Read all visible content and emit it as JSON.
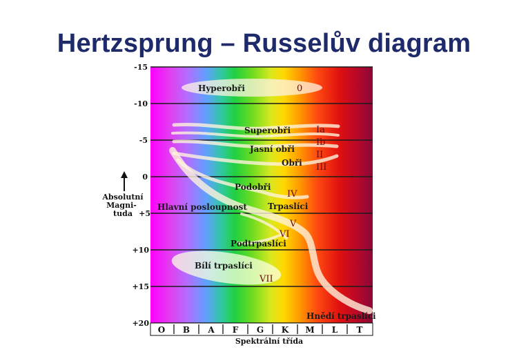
{
  "title": "Hertzsprung – Russelův diagram",
  "y_axis": {
    "label_lines": [
      "Absolutní",
      "Magni-",
      "tuda"
    ],
    "ticks": [
      "-15",
      "-10",
      "-5",
      "0",
      "+5",
      "+10",
      "+15",
      "+20"
    ]
  },
  "x_axis": {
    "label": "Spektrální třída",
    "classes": [
      "O",
      "B",
      "A",
      "F",
      "G",
      "K",
      "M",
      "L",
      "T"
    ]
  },
  "regions": {
    "hyperobri": "Hyperobři",
    "superobri": "Superobři",
    "jasni_obri": "Jasní obři",
    "obri": "Obři",
    "podobri": "Podobři",
    "hlavni_posloupnost": "Hlavní posloupnost",
    "trpaslici": "Trpaslíci",
    "podtrpaslici": "Podtrpaslíci",
    "bili_trpaslici": "Bílí trpaslíci",
    "hnedi_trpaslici": "Hnědí trpaslíci"
  },
  "luminosity_classes": {
    "c0": "0",
    "ia": "Ia",
    "ib": "Ib",
    "ii": "II",
    "iii": "III",
    "iv": "IV",
    "v": "V",
    "vi": "VI",
    "vii": "VII"
  }
}
